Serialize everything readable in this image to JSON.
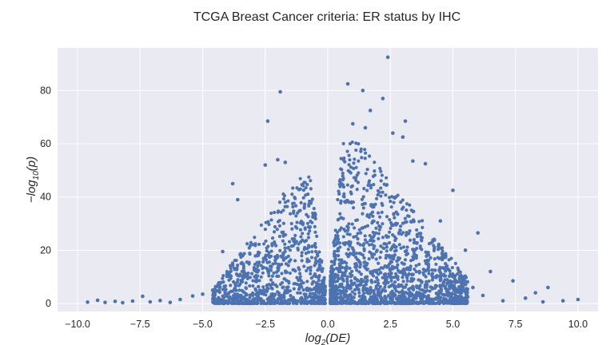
{
  "chart_data": {
    "type": "scatter",
    "title": "TCGA Breast Cancer criteria: ER status by IHC",
    "xlabel_base": "log",
    "xlabel_sub": "2",
    "xlabel_arg": "(DE)",
    "ylabel_prefix": "−log",
    "ylabel_sub": "10",
    "ylabel_arg": "(p)",
    "xlim": [
      -10.8,
      10.8
    ],
    "ylim": [
      -3,
      96
    ],
    "x_ticks": [
      -10.0,
      -7.5,
      -5.0,
      -2.5,
      0.0,
      2.5,
      5.0,
      7.5,
      10.0
    ],
    "x_tick_labels": [
      "−10.0",
      "−7.5",
      "−5.0",
      "−2.5",
      "0.0",
      "2.5",
      "5.0",
      "7.5",
      "10.0"
    ],
    "y_ticks": [
      0,
      20,
      40,
      60,
      80
    ],
    "y_tick_labels": [
      "0",
      "20",
      "40",
      "60",
      "80"
    ],
    "grid": true,
    "background": "#eaeaf2",
    "marker_color": "#4c72b0",
    "series": [
      {
        "points": [
          [
            2.4,
            92.5
          ],
          [
            0.8,
            82.5
          ],
          [
            1.4,
            80.0
          ],
          [
            -1.9,
            79.5
          ],
          [
            2.2,
            77.0
          ],
          [
            1.7,
            72.5
          ],
          [
            -2.4,
            68.5
          ],
          [
            3.1,
            68.5
          ],
          [
            1.0,
            67.5
          ],
          [
            1.5,
            66.0
          ],
          [
            2.6,
            64.0
          ],
          [
            3.0,
            62.5
          ],
          [
            -3.8,
            45.0
          ],
          [
            -2.5,
            52.0
          ],
          [
            -2.0,
            54.0
          ],
          [
            -1.7,
            53.0
          ],
          [
            3.4,
            53.5
          ],
          [
            3.9,
            52.5
          ],
          [
            5.0,
            42.5
          ],
          [
            -3.6,
            39.0
          ],
          [
            -4.2,
            19.5
          ],
          [
            6.0,
            26.5
          ],
          [
            5.5,
            20.0
          ],
          [
            4.5,
            31.0
          ],
          [
            6.5,
            12.0
          ],
          [
            7.4,
            8.5
          ],
          [
            8.8,
            6.0
          ],
          [
            8.3,
            4.0
          ],
          [
            7.9,
            2.0
          ],
          [
            10.0,
            1.5
          ],
          [
            -9.6,
            0.5
          ],
          [
            -9.2,
            1.2
          ],
          [
            -8.9,
            0.4
          ],
          [
            -8.5,
            0.8
          ],
          [
            -8.2,
            0.3
          ],
          [
            -7.8,
            0.9
          ],
          [
            -7.4,
            2.7
          ],
          [
            -7.1,
            0.6
          ],
          [
            -6.7,
            1.1
          ],
          [
            -6.3,
            0.4
          ],
          [
            -5.9,
            1.5
          ],
          [
            -5.4,
            2.8
          ],
          [
            -5.0,
            3.5
          ],
          [
            -4.6,
            5.0
          ],
          [
            -4.4,
            6.5
          ],
          [
            9.4,
            1.0
          ],
          [
            8.6,
            0.6
          ],
          [
            7.0,
            1.0
          ],
          [
            6.2,
            3.0
          ],
          [
            5.8,
            6.0
          ]
        ]
      }
    ]
  }
}
